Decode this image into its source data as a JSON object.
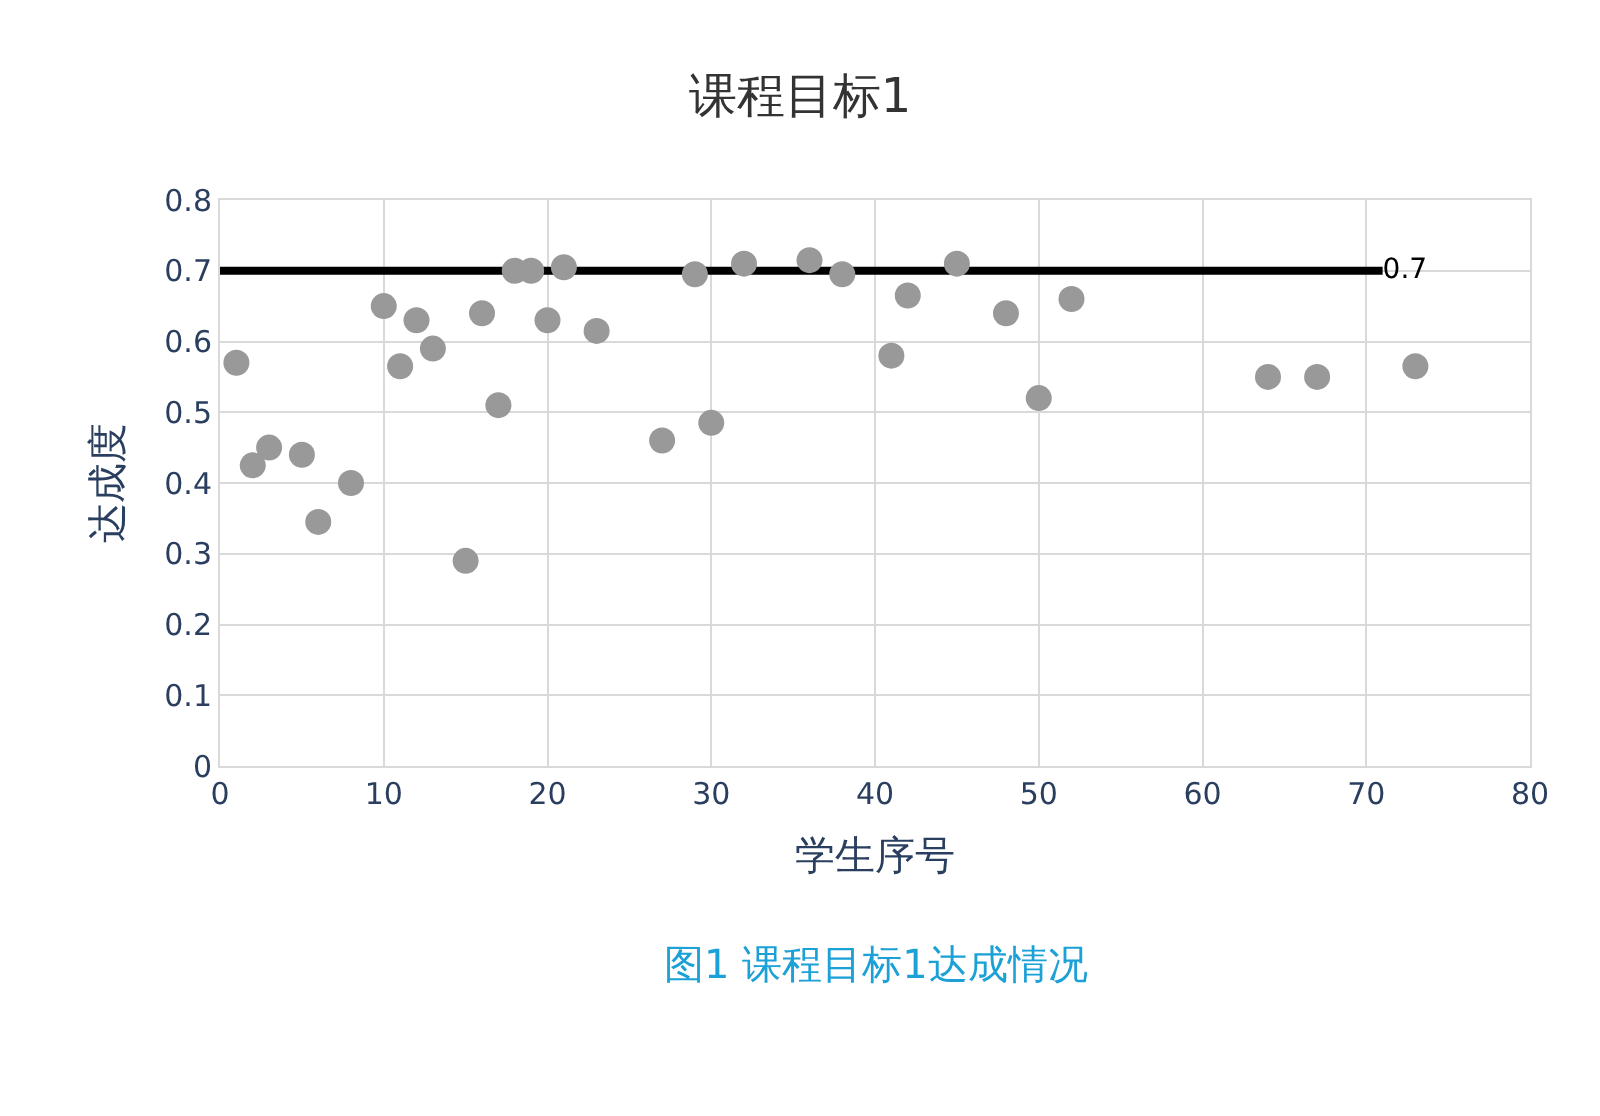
{
  "chart_data": {
    "type": "scatter",
    "title": "课程目标1",
    "xlabel": "学生序号",
    "ylabel": "达成度",
    "annotations": [
      "图1 课程目标1达成情况"
    ],
    "series": [
      {
        "color": "#999999",
        "marker": "circle",
        "x": [
          1,
          2,
          3,
          5,
          6,
          8,
          10,
          11,
          12,
          13,
          15,
          16,
          17,
          18,
          19,
          20,
          21,
          23,
          27,
          29,
          30,
          32,
          36,
          38,
          41,
          42,
          45,
          48,
          50,
          52,
          64,
          67,
          73
        ],
        "values": [
          0.57,
          0.425,
          0.45,
          0.44,
          0.345,
          0.4,
          0.65,
          0.565,
          0.63,
          0.59,
          0.29,
          0.64,
          0.51,
          0.7,
          0.7,
          0.63,
          0.705,
          0.615,
          0.46,
          0.695,
          0.485,
          0.71,
          0.715,
          0.695,
          0.58,
          0.665,
          0.71,
          0.64,
          0.52,
          0.66,
          0.55,
          0.55,
          0.565
        ]
      },
      {
        "type": "line",
        "color": "#000000",
        "marker": "none",
        "x": [
          0,
          71
        ],
        "values": [
          0.7,
          0.7
        ],
        "value_labels": [
          null,
          "0.7"
        ]
      }
    ],
    "xlim": [
      0,
      80
    ],
    "xticks": [
      0,
      10,
      20,
      30,
      40,
      50,
      60,
      70,
      80
    ],
    "ylim": [
      0,
      0.8
    ],
    "yticks": [
      0,
      0.1,
      0.2,
      0.3,
      0.4,
      0.5,
      0.6,
      0.7,
      0.8
    ],
    "grid": true
  }
}
